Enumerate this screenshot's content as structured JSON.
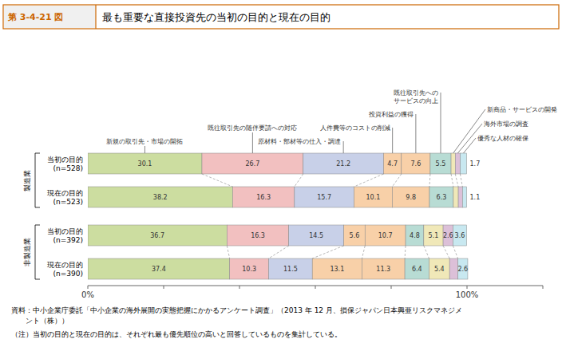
{
  "chart_data": {
    "type": "bar",
    "orientation": "horizontal",
    "stacked": true,
    "figure_number": "第 3-4-21 図",
    "title": "最も重要な直接投資先の当初の目的と現在の目的",
    "categories": [
      "当初の目的\n(n=528)",
      "現在の目的\n(n=523)",
      "当初の目的\n(n=392)",
      "現在の目的\n(n=390)"
    ],
    "category_groups": [
      "製造業",
      "製造業",
      "非製造業",
      "非製造業"
    ],
    "series": [
      {
        "name": "新規の取引先・市場の開拓",
        "color": "#ccdda0",
        "values": [
          30.1,
          38.2,
          36.7,
          37.4
        ]
      },
      {
        "name": "既往取引先の随伴要請への対応",
        "color": "#f2c0c0",
        "values": [
          26.7,
          16.3,
          16.3,
          10.3
        ]
      },
      {
        "name": "原材料・部材等の仕入・調達",
        "color": "#c8d0e8",
        "values": [
          21.2,
          15.7,
          14.5,
          11.5
        ]
      },
      {
        "name": "人件費等のコストの削減",
        "color": "#f8d0a8",
        "values": [
          4.7,
          10.1,
          5.6,
          13.1
        ]
      },
      {
        "name": "投資利益の獲得",
        "color": "#f8d0a8",
        "values": [
          7.6,
          9.8,
          10.7,
          11.3
        ]
      },
      {
        "name": "既往取引先への\nサービスの向上",
        "color": "#b8dcd4",
        "values": [
          5.5,
          6.3,
          4.8,
          6.4
        ]
      },
      {
        "name": "新商品・サービスの開発",
        "color": "#f0e8b8",
        "values": [
          1.1,
          1.3,
          5.1,
          5.4
        ]
      },
      {
        "name": "海外市場の調査",
        "color": "#dcc0d8",
        "values": [
          1.3,
          1.1,
          2.6,
          2.2
        ]
      },
      {
        "name": "優秀な人材の確保",
        "color": "#c8e8f0",
        "values": [
          1.7,
          1.1,
          3.6,
          2.6
        ]
      }
    ],
    "xlim": [
      0,
      120
    ],
    "xticks": [
      {
        "value": 0,
        "label": "0%"
      },
      {
        "value": 20,
        "label": null
      },
      {
        "value": 40,
        "label": null
      },
      {
        "value": 60,
        "label": null
      },
      {
        "value": 80,
        "label": null
      },
      {
        "value": 100,
        "label": "100%"
      },
      {
        "value": 120,
        "label": null
      }
    ],
    "grid": false,
    "data_labels": true,
    "notes": [
      "資料：中小企業庁委託「中小企業の海外展開の実態把握にかかるアンケート調査」（2013 年 12 月、損保ジャパン日本興亜リスクマネジメ",
      "　　ント（株））",
      "（注）当初の目的と現在の目的は、それぞれ最も優先順位の高いと回答しているものを集計している。"
    ]
  }
}
